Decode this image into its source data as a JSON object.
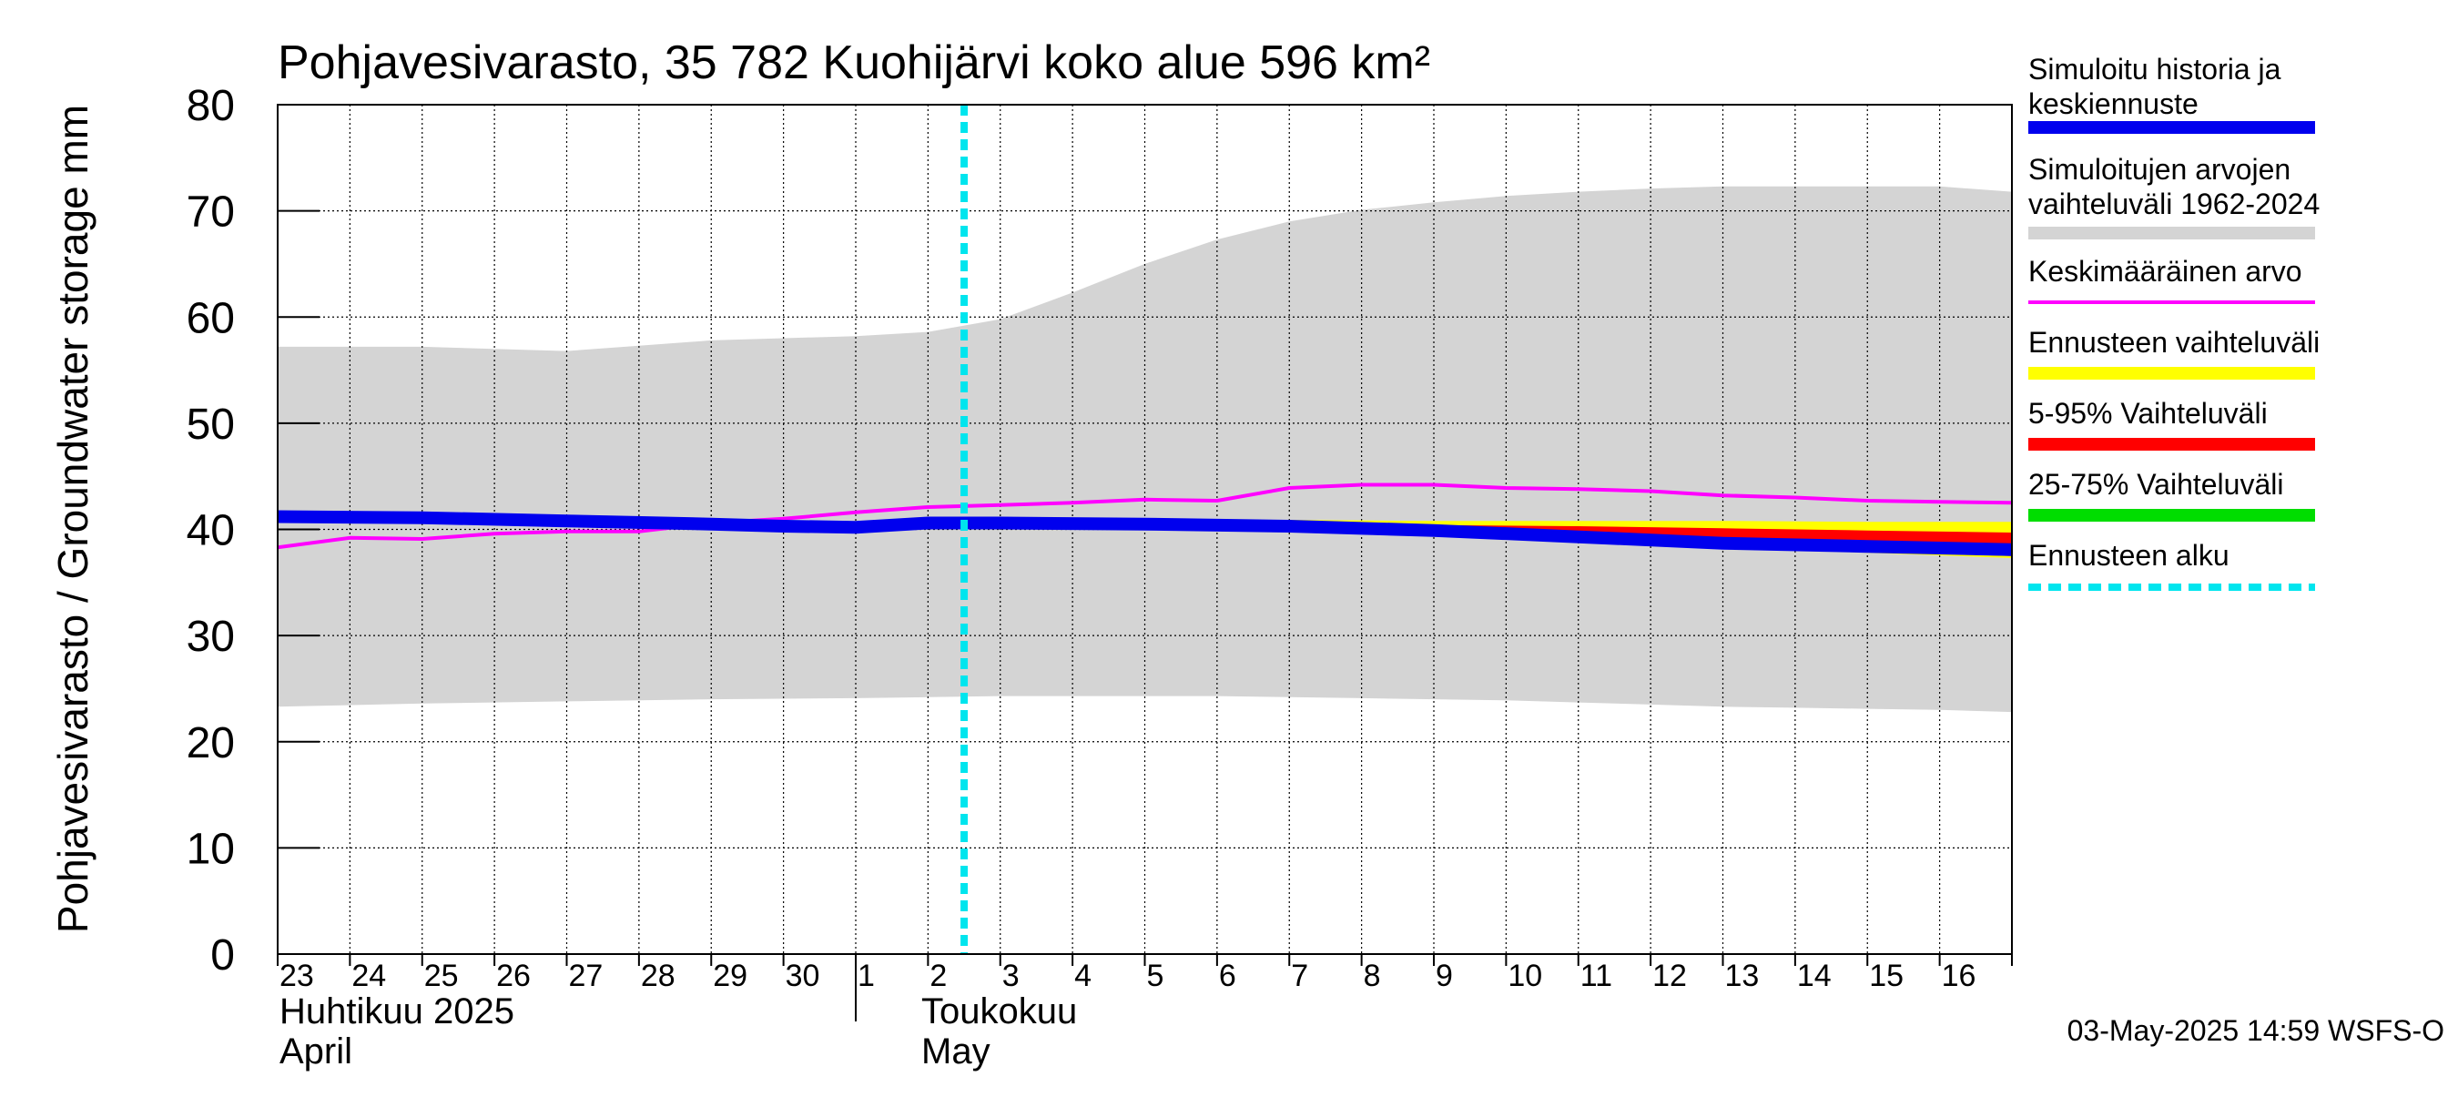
{
  "chart_data": {
    "type": "area",
    "title": "Pohjavesivarasto, 35 782 Kuohijärvi koko alue 596 km²",
    "ylabel": "Pohjavesivarasto / Groundwater storage   mm",
    "ylim": [
      0,
      80
    ],
    "yticks": [
      "0",
      "10",
      "20",
      "30",
      "40",
      "50",
      "60",
      "70",
      "80"
    ],
    "grid": true,
    "legend_position": "right",
    "x_start": "2025-04-23",
    "x_end": "2025-05-16",
    "x_ticks": [
      "23",
      "24",
      "25",
      "26",
      "27",
      "28",
      "29",
      "30",
      "1",
      "2",
      "3",
      "4",
      "5",
      "6",
      "7",
      "8",
      "9",
      "10",
      "11",
      "12",
      "13",
      "14",
      "15",
      "16"
    ],
    "month_labels": [
      {
        "fi": "Huhtikuu  2025",
        "en": "April",
        "start": "2025-04-23"
      },
      {
        "fi": "Toukokuu",
        "en": "May",
        "start": "2025-05-01"
      }
    ],
    "forecast_start": "2025-05-03",
    "footer": "03-May-2025 14:59 WSFS-O",
    "colors": {
      "history": "#0000ee",
      "range": "#d4d4d4",
      "mean": "#ff00ff",
      "forecast_range": "#ffff00",
      "p5_95": "#ff0000",
      "p25_75": "#00dd00",
      "forecast_start": "#00e5ee"
    },
    "legend": [
      {
        "label": "Simuloitu historia ja keskiennuste",
        "color": "#0000ee",
        "style": "thick"
      },
      {
        "label": "Simuloitujen arvojen vaihteluväli 1962-2024",
        "color": "#d4d4d4",
        "style": "thick"
      },
      {
        "label": "Keskimääräinen arvo",
        "color": "#ff00ff",
        "style": "thin"
      },
      {
        "label": "Ennusteen vaihteluväli",
        "color": "#ffff00",
        "style": "thick"
      },
      {
        "label": "5-95% Vaihteluväli",
        "color": "#ff0000",
        "style": "thick"
      },
      {
        "label": "25-75% Vaihteluväli",
        "color": "#00dd00",
        "style": "thick"
      },
      {
        "label": "Ennusteen alku",
        "color": "#00e5ee",
        "style": "dashed"
      }
    ],
    "series": [
      {
        "name": "Simuloitujen arvojen vaihteluväli 1962-2024",
        "kind": "band",
        "x": [
          "2025-04-23",
          "2025-04-25",
          "2025-04-27",
          "2025-04-29",
          "2025-05-01",
          "2025-05-02",
          "2025-05-03",
          "2025-05-04",
          "2025-05-05",
          "2025-05-06",
          "2025-05-07",
          "2025-05-08",
          "2025-05-09",
          "2025-05-10",
          "2025-05-11",
          "2025-05-12",
          "2025-05-13",
          "2025-05-14",
          "2025-05-15",
          "2025-05-16",
          "2025-05-17"
        ],
        "upper": [
          57.2,
          57.2,
          56.8,
          57.8,
          58.2,
          58.6,
          59.8,
          62.3,
          65.0,
          67.3,
          69.0,
          70.1,
          70.8,
          71.4,
          71.8,
          72.1,
          72.3,
          72.3,
          72.3,
          72.3,
          71.8
        ],
        "lower": [
          23.3,
          23.6,
          23.8,
          24.0,
          24.1,
          24.2,
          24.3,
          24.3,
          24.3,
          24.3,
          24.2,
          24.1,
          24.0,
          23.9,
          23.7,
          23.5,
          23.3,
          23.2,
          23.1,
          23.0,
          22.8
        ]
      },
      {
        "name": "Ennusteen vaihteluväli",
        "kind": "band",
        "x": [
          "2025-05-03",
          "2025-05-05",
          "2025-05-07",
          "2025-05-09",
          "2025-05-11",
          "2025-05-13",
          "2025-05-15",
          "2025-05-17"
        ],
        "upper": [
          40.9,
          40.9,
          40.9,
          40.8,
          40.8,
          40.8,
          40.7,
          40.7
        ],
        "lower": [
          40.4,
          40.2,
          39.9,
          39.4,
          38.8,
          38.3,
          37.8,
          37.3
        ]
      },
      {
        "name": "5-95% Vaihteluväli",
        "kind": "band",
        "x": [
          "2025-05-03",
          "2025-05-05",
          "2025-05-07",
          "2025-05-09",
          "2025-05-11",
          "2025-05-13",
          "2025-05-15",
          "2025-05-17"
        ],
        "upper": [
          40.7,
          40.6,
          40.5,
          40.4,
          40.3,
          40.1,
          39.9,
          39.7
        ],
        "lower": [
          40.5,
          40.3,
          40.0,
          39.5,
          38.9,
          38.4,
          37.9,
          37.5
        ]
      },
      {
        "name": "25-75% Vaihteluväli",
        "kind": "band",
        "x": [
          "2025-05-03",
          "2025-05-05",
          "2025-05-07",
          "2025-05-09",
          "2025-05-11",
          "2025-05-13",
          "2025-05-15",
          "2025-05-17"
        ],
        "upper": [
          40.6,
          40.4,
          40.2,
          39.9,
          39.5,
          39.1,
          38.7,
          38.4
        ],
        "lower": [
          40.5,
          40.3,
          40.0,
          39.6,
          39.1,
          38.6,
          38.2,
          37.9
        ]
      },
      {
        "name": "Keskimääräinen arvo",
        "kind": "line",
        "x": [
          "2025-04-23",
          "2025-04-24",
          "2025-04-25",
          "2025-04-26",
          "2025-04-27",
          "2025-04-28",
          "2025-04-29",
          "2025-04-30",
          "2025-05-01",
          "2025-05-02",
          "2025-05-03",
          "2025-05-04",
          "2025-05-05",
          "2025-05-06",
          "2025-05-07",
          "2025-05-08",
          "2025-05-09",
          "2025-05-10",
          "2025-05-11",
          "2025-05-12",
          "2025-05-13",
          "2025-05-14",
          "2025-05-15",
          "2025-05-16",
          "2025-05-17"
        ],
        "y": [
          38.3,
          39.2,
          39.1,
          39.6,
          39.8,
          39.8,
          40.6,
          41.0,
          41.6,
          42.1,
          42.3,
          42.5,
          42.8,
          42.7,
          43.9,
          44.2,
          44.2,
          43.9,
          43.8,
          43.6,
          43.2,
          43.0,
          42.7,
          42.6,
          42.5
        ]
      },
      {
        "name": "Simuloitu historia ja keskiennuste",
        "kind": "line",
        "x": [
          "2025-04-23",
          "2025-04-25",
          "2025-04-27",
          "2025-04-29",
          "2025-04-30",
          "2025-05-01",
          "2025-05-02",
          "2025-05-03",
          "2025-05-05",
          "2025-05-07",
          "2025-05-09",
          "2025-05-11",
          "2025-05-13",
          "2025-05-15",
          "2025-05-17"
        ],
        "y": [
          41.2,
          41.1,
          40.8,
          40.5,
          40.3,
          40.2,
          40.6,
          40.6,
          40.5,
          40.3,
          39.9,
          39.3,
          38.7,
          38.4,
          38.1
        ]
      }
    ]
  }
}
